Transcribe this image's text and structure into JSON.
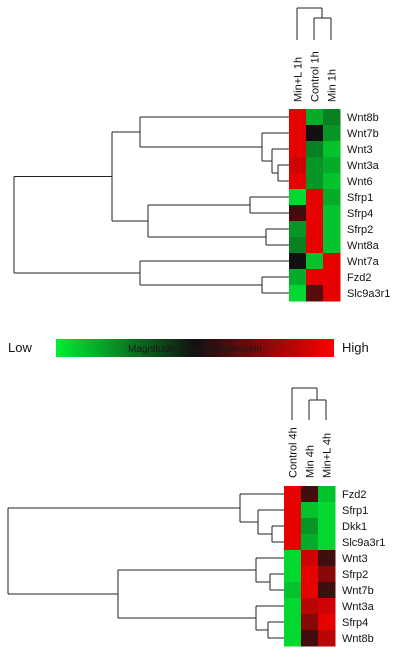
{
  "colors": {
    "low": "#00ee33",
    "mid": "#111111",
    "high": "#ff0000"
  },
  "scale": {
    "low_label": "Low",
    "mid_label": "Magnitude of gene expression",
    "high_label": "High"
  },
  "chart_data": [
    {
      "type": "heatmap",
      "columns": [
        "Min+L 1h",
        "Control 1h",
        "Min 1h"
      ],
      "rows": [
        "Wnt8b",
        "Wnt7b",
        "Wnt3",
        "Wnt3a",
        "Wnt6",
        "Sfrp1",
        "Sfrp4",
        "Sfrp2",
        "Wnt8a",
        "Wnt7a",
        "Fzd2",
        "Slc9a3r1"
      ],
      "values": [
        [
          0.95,
          0.15,
          0.25
        ],
        [
          0.95,
          0.5,
          0.2
        ],
        [
          0.95,
          0.25,
          0.1
        ],
        [
          0.9,
          0.2,
          0.15
        ],
        [
          0.95,
          0.2,
          0.1
        ],
        [
          0.05,
          0.95,
          0.15
        ],
        [
          0.6,
          0.95,
          0.1
        ],
        [
          0.2,
          0.95,
          0.1
        ],
        [
          0.25,
          0.95,
          0.1
        ],
        [
          0.5,
          0.1,
          0.95
        ],
        [
          0.15,
          0.95,
          0.95
        ],
        [
          0.05,
          0.65,
          0.95
        ]
      ]
    },
    {
      "type": "heatmap",
      "columns": [
        "Control 4h",
        "Min 4h",
        "Min+L 4h"
      ],
      "rows": [
        "Fzd2",
        "Sfrp1",
        "Dkk1",
        "Slc9a3r1",
        "Wnt3",
        "Sfrp2",
        "Wnt7b",
        "Wnt3a",
        "Sfrp4",
        "Wnt8b"
      ],
      "values": [
        [
          0.95,
          0.6,
          0.1
        ],
        [
          0.95,
          0.1,
          0.05
        ],
        [
          0.95,
          0.2,
          0.05
        ],
        [
          0.95,
          0.15,
          0.05
        ],
        [
          0.05,
          0.9,
          0.6
        ],
        [
          0.05,
          0.95,
          0.75
        ],
        [
          0.1,
          0.95,
          0.6
        ],
        [
          0.05,
          0.85,
          0.9
        ],
        [
          0.05,
          0.75,
          0.95
        ],
        [
          0.05,
          0.6,
          0.85
        ]
      ]
    }
  ]
}
